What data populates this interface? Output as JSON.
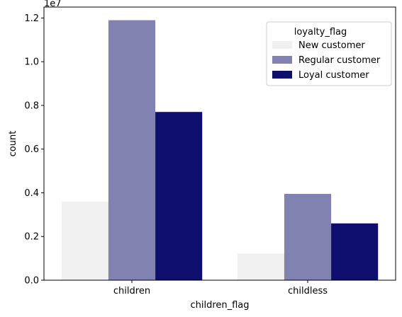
{
  "chart_data": {
    "type": "bar",
    "categories": [
      "children",
      "childless"
    ],
    "series": [
      {
        "name": "New customer",
        "color": "#f0f0f0",
        "values": [
          3600000,
          1220000
        ]
      },
      {
        "name": "Regular customer",
        "color": "#8282b2",
        "values": [
          11900000,
          3950000
        ]
      },
      {
        "name": "Loyal customer",
        "color": "#0e0e6e",
        "values": [
          7700000,
          2600000
        ]
      }
    ],
    "xlabel": "children_flag",
    "ylabel": "count",
    "ylim": [
      0,
      12500000
    ],
    "yticks": [
      0,
      2000000,
      4000000,
      6000000,
      8000000,
      10000000,
      12000000
    ],
    "ytick_labels": [
      "0.0",
      "0.2",
      "0.4",
      "0.6",
      "0.8",
      "1.0",
      "1.2"
    ],
    "y_offset_label": "1e7",
    "legend": {
      "title": "loyalty_flag",
      "placement": "top-right"
    },
    "grid": false
  }
}
